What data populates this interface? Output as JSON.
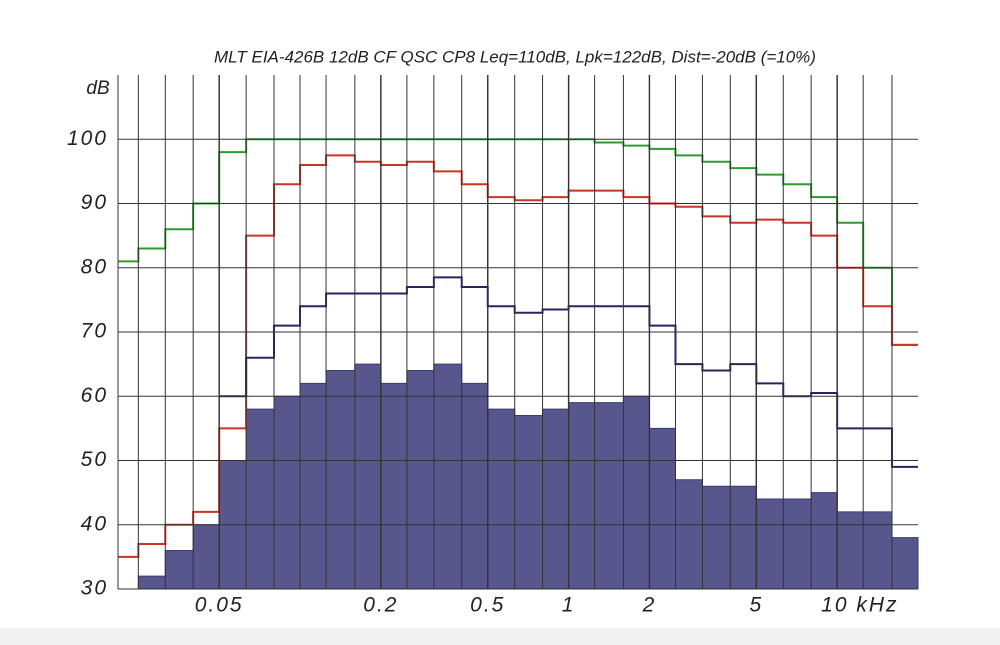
{
  "chart_data": {
    "type": "line",
    "step": true,
    "title": "MLT EIA-426B 12dB CF QSC CP8 Leq=110dB, Lpk=122dB, Dist=-20dB (=10%)",
    "y_label": "dB",
    "log_x": true,
    "grid": true,
    "xlim": [
      0.021,
      20
    ],
    "ylim": [
      30,
      110
    ],
    "xticks": [
      0.05,
      0.2,
      0.5,
      1,
      2,
      5,
      {
        "value": 10,
        "label": "10 kHz"
      }
    ],
    "yticks": [
      30,
      40,
      50,
      60,
      70,
      80,
      90,
      100
    ],
    "x": [
      0.021,
      0.025,
      0.0315,
      0.04,
      0.05,
      0.063,
      0.08,
      0.1,
      0.125,
      0.16,
      0.2,
      0.25,
      0.315,
      0.4,
      0.5,
      0.63,
      0.8,
      1,
      1.25,
      1.6,
      2,
      2.5,
      3.15,
      4,
      5,
      6.3,
      8,
      10,
      12.5,
      16
    ],
    "series": [
      {
        "color": "#3a3a7a",
        "fill": true,
        "values": [
          30,
          32,
          36,
          40,
          50,
          58,
          60,
          62,
          64,
          65,
          62,
          64,
          65,
          62,
          58,
          57,
          58,
          59,
          59,
          60,
          55,
          47,
          46,
          46,
          44,
          44,
          45,
          42,
          42,
          38
        ]
      },
      {
        "color": "#2e9a2e",
        "values": [
          81,
          83,
          86,
          90,
          98,
          100,
          100,
          100,
          100,
          100,
          100,
          100,
          100,
          100,
          100,
          100,
          100,
          100,
          99.5,
          99,
          98.5,
          97.5,
          96.5,
          95.5,
          94.5,
          93,
          91,
          87,
          80,
          68
        ]
      },
      {
        "color": "#cc3322",
        "values": [
          35,
          37,
          40,
          42,
          55,
          85,
          93,
          96,
          97.5,
          96.5,
          96,
          96.5,
          95,
          93,
          91,
          90.5,
          91,
          92,
          92,
          91,
          90,
          89.5,
          88,
          87,
          87.5,
          87,
          85,
          80,
          74,
          68
        ]
      },
      {
        "color": "#26265e",
        "values": [
          null,
          null,
          null,
          null,
          60,
          66,
          71,
          74,
          76,
          76,
          76,
          77,
          78.5,
          77,
          74,
          73,
          73.5,
          74,
          74,
          74,
          71,
          65,
          64,
          65,
          62,
          60,
          60.5,
          55,
          55,
          49
        ]
      }
    ]
  }
}
